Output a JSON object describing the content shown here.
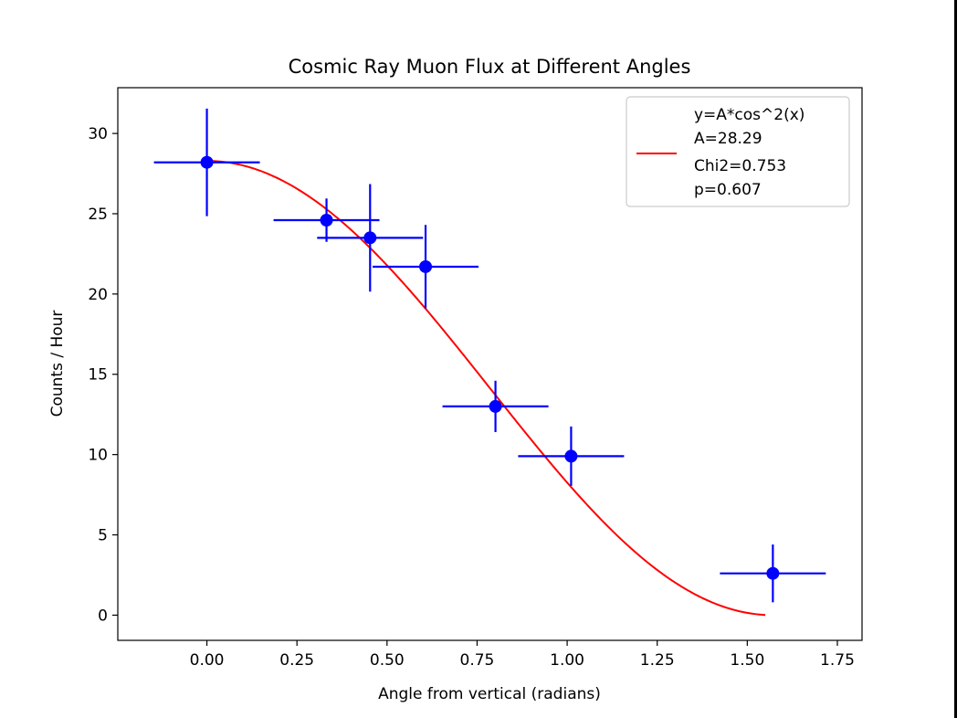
{
  "chart_data": {
    "type": "scatter",
    "title": "Cosmic Ray Muon Flux at Different Angles",
    "xlabel": "Angle from vertical (radians)",
    "ylabel": "Counts / Hour",
    "xlim": [
      -0.2473,
      1.8185
    ],
    "ylim": [
      -1.57,
      32.85
    ],
    "xticks": [
      0.0,
      0.25,
      0.5,
      0.75,
      1.0,
      1.25,
      1.5,
      1.75
    ],
    "xtick_labels": [
      "0.00",
      "0.25",
      "0.50",
      "0.75",
      "1.00",
      "1.25",
      "1.50",
      "1.75"
    ],
    "yticks": [
      0,
      5,
      10,
      15,
      20,
      25,
      30
    ],
    "ytick_labels": [
      "0",
      "5",
      "10",
      "15",
      "20",
      "25",
      "30"
    ],
    "grid": false,
    "legend_position": "top-right",
    "legend_lines": [
      "y=A*cos^2(x)",
      "A=28.29",
      "Chi2=0.753",
      "p=0.607"
    ],
    "measurements": {
      "color": "#0000ff",
      "x": [
        0.0,
        0.332,
        0.453,
        0.607,
        0.801,
        1.011,
        1.571
      ],
      "y": [
        28.2,
        24.6,
        23.5,
        21.7,
        13.0,
        9.9,
        2.6
      ],
      "xerr": [
        0.147,
        0.147,
        0.147,
        0.147,
        0.147,
        0.147,
        0.147
      ],
      "yerr": [
        3.35,
        1.35,
        3.35,
        2.6,
        1.6,
        1.85,
        1.8
      ]
    },
    "fit": {
      "color": "#ff0000",
      "amplitude": 28.29,
      "x_range": [
        0.0,
        1.55
      ]
    }
  }
}
